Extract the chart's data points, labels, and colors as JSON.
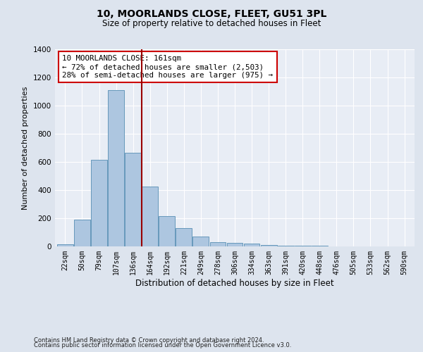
{
  "title1": "10, MOORLANDS CLOSE, FLEET, GU51 3PL",
  "title2": "Size of property relative to detached houses in Fleet",
  "xlabel": "Distribution of detached houses by size in Fleet",
  "ylabel": "Number of detached properties",
  "categories": [
    "22sqm",
    "50sqm",
    "79sqm",
    "107sqm",
    "136sqm",
    "164sqm",
    "192sqm",
    "221sqm",
    "249sqm",
    "278sqm",
    "306sqm",
    "334sqm",
    "363sqm",
    "391sqm",
    "420sqm",
    "448sqm",
    "476sqm",
    "505sqm",
    "533sqm",
    "562sqm",
    "590sqm"
  ],
  "values": [
    15,
    190,
    615,
    1110,
    665,
    425,
    215,
    130,
    70,
    30,
    25,
    20,
    10,
    5,
    5,
    3,
    2,
    2,
    1,
    0,
    0
  ],
  "bar_color": "#adc6e0",
  "bar_edge_color": "#6699bb",
  "vline_x": 4.5,
  "annotation_text": "10 MOORLANDS CLOSE: 161sqm\n← 72% of detached houses are smaller (2,503)\n28% of semi-detached houses are larger (975) →",
  "annotation_box_color": "white",
  "annotation_box_edge_color": "#cc0000",
  "footer1": "Contains HM Land Registry data © Crown copyright and database right 2024.",
  "footer2": "Contains public sector information licensed under the Open Government Licence v3.0.",
  "ylim": [
    0,
    1400
  ],
  "yticks": [
    0,
    200,
    400,
    600,
    800,
    1000,
    1200,
    1400
  ],
  "bg_color": "#dde4ee",
  "plot_bg_color": "#e8edf5",
  "grid_color": "#ffffff",
  "title1_fontsize": 10,
  "title2_fontsize": 8.5,
  "xlabel_fontsize": 8.5,
  "ylabel_fontsize": 8,
  "tick_fontsize": 7,
  "footer_fontsize": 6
}
